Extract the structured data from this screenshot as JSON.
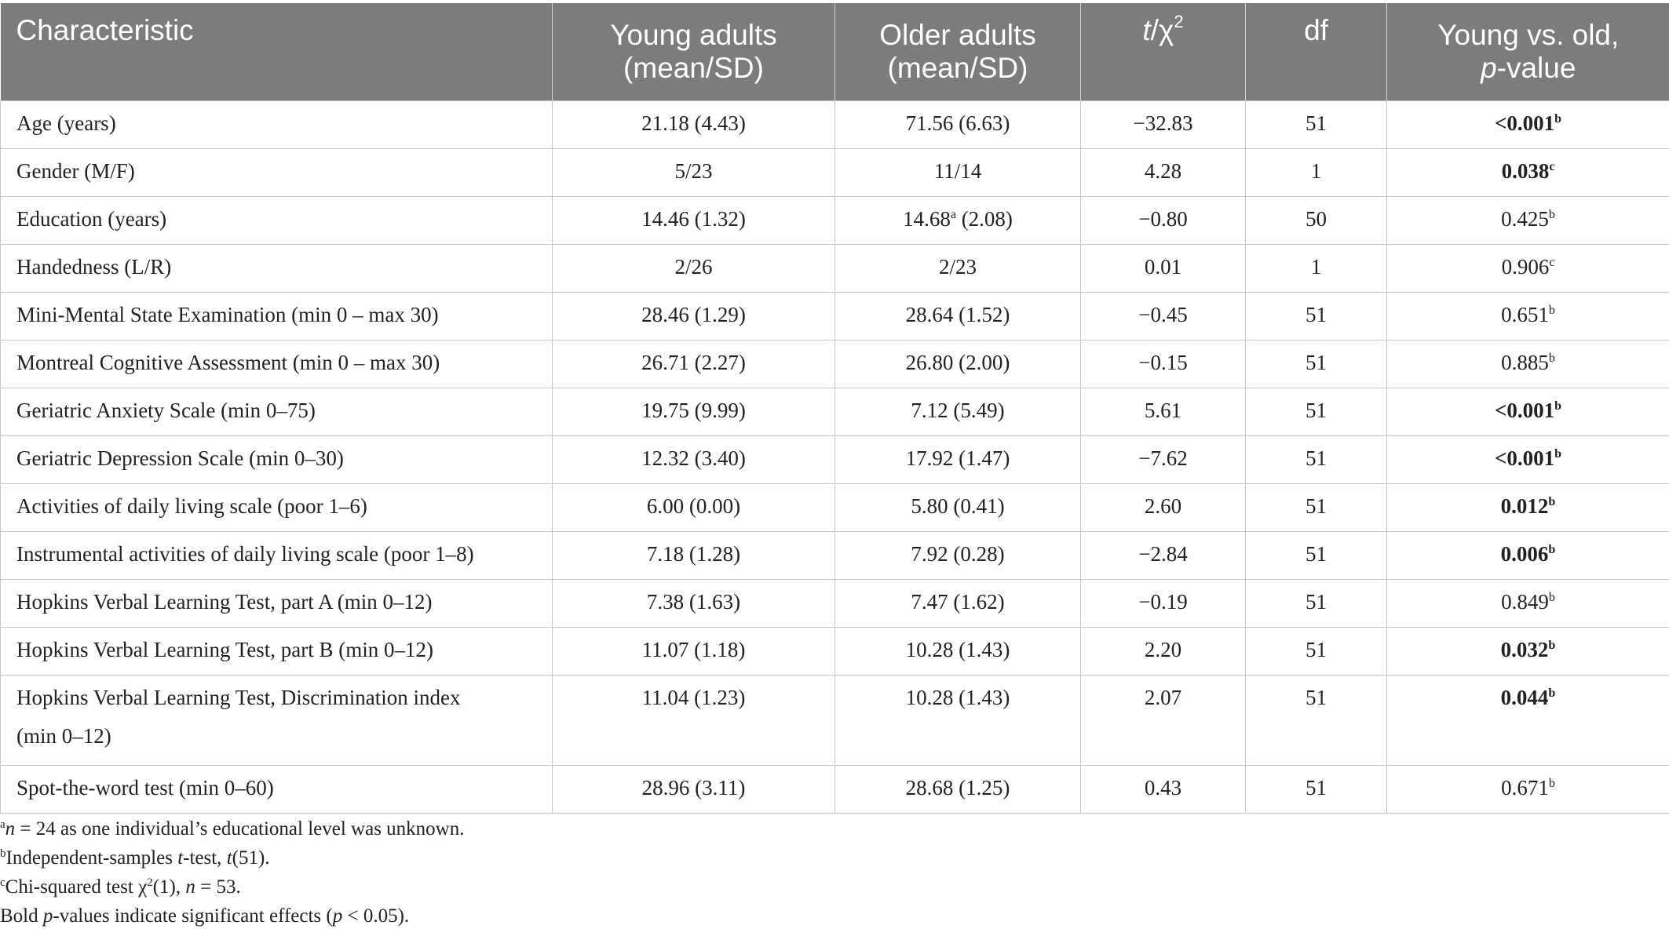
{
  "table": {
    "headers": [
      {
        "line1": "Characteristic",
        "line2": ""
      },
      {
        "line1": "Young adults",
        "line2": "(mean/SD)"
      },
      {
        "line1": "Older adults",
        "line2": "(mean/SD)"
      },
      {
        "line1_pre": "t",
        "line1_post": "/χ",
        "sup": "2"
      },
      {
        "line1": "df",
        "line2": ""
      },
      {
        "line1": "Young vs. old,",
        "line2_it": "p",
        "line2_post": "-value"
      }
    ],
    "rows": [
      {
        "characteristic": "Age (years)",
        "young": "21.18 (4.43)",
        "older": "71.56 (6.63)",
        "older_sup": "",
        "stat": "−32.83",
        "df": "51",
        "p": "<0.001",
        "p_sup": "b",
        "bold": true
      },
      {
        "characteristic": "Gender (M/F)",
        "young": "5/23",
        "older": "11/14",
        "older_sup": "",
        "stat": "4.28",
        "df": "1",
        "p": "0.038",
        "p_sup": "c",
        "bold": true
      },
      {
        "characteristic": "Education (years)",
        "young": "14.46 (1.32)",
        "older": "14.68",
        "older_sup": "a",
        "older_rest": " (2.08)",
        "stat": "−0.80",
        "df": "50",
        "p": "0.425",
        "p_sup": "b",
        "bold": false
      },
      {
        "characteristic": "Handedness (L/R)",
        "young": "2/26",
        "older": "2/23",
        "older_sup": "",
        "stat": "0.01",
        "df": "1",
        "p": "0.906",
        "p_sup": "c",
        "bold": false
      },
      {
        "characteristic": "Mini-Mental State Examination (min 0 – max 30)",
        "young": "28.46 (1.29)",
        "older": "28.64 (1.52)",
        "older_sup": "",
        "stat": "−0.45",
        "df": "51",
        "p": "0.651",
        "p_sup": "b",
        "bold": false
      },
      {
        "characteristic": "Montreal Cognitive Assessment (min 0 – max 30)",
        "young": "26.71 (2.27)",
        "older": "26.80 (2.00)",
        "older_sup": "",
        "stat": "−0.15",
        "df": "51",
        "p": "0.885",
        "p_sup": "b",
        "bold": false
      },
      {
        "characteristic": "Geriatric Anxiety Scale (min 0–75)",
        "young": "19.75 (9.99)",
        "older": "7.12 (5.49)",
        "older_sup": "",
        "stat": "5.61",
        "df": "51",
        "p": "<0.001",
        "p_sup": "b",
        "bold": true
      },
      {
        "characteristic": "Geriatric Depression Scale (min 0–30)",
        "young": "12.32 (3.40)",
        "older": "17.92 (1.47)",
        "older_sup": "",
        "stat": "−7.62",
        "df": "51",
        "p": "<0.001",
        "p_sup": "b",
        "bold": true
      },
      {
        "characteristic": "Activities of daily living scale (poor 1–6)",
        "young": "6.00 (0.00)",
        "older": "5.80 (0.41)",
        "older_sup": "",
        "stat": "2.60",
        "df": "51",
        "p": "0.012",
        "p_sup": "b",
        "bold": true
      },
      {
        "characteristic": "Instrumental activities of daily living scale (poor 1–8)",
        "young": "7.18 (1.28)",
        "older": "7.92 (0.28)",
        "older_sup": "",
        "stat": "−2.84",
        "df": "51",
        "p": "0.006",
        "p_sup": "b",
        "bold": true
      },
      {
        "characteristic": "Hopkins Verbal Learning Test, part A (min 0–12)",
        "young": "7.38 (1.63)",
        "older": "7.47 (1.62)",
        "older_sup": "",
        "stat": "−0.19",
        "df": "51",
        "p": "0.849",
        "p_sup": "b",
        "bold": false
      },
      {
        "characteristic": "Hopkins Verbal Learning Test, part B (min 0–12)",
        "young": "11.07 (1.18)",
        "older": "10.28 (1.43)",
        "older_sup": "",
        "stat": "2.20",
        "df": "51",
        "p": "0.032",
        "p_sup": "b",
        "bold": true
      },
      {
        "characteristic": "Hopkins Verbal Learning Test, Discrimination index",
        "characteristic_line2": "(min 0–12)",
        "young": "11.04 (1.23)",
        "older": "10.28 (1.43)",
        "older_sup": "",
        "stat": "2.07",
        "df": "51",
        "p": "0.044",
        "p_sup": "b",
        "bold": true
      },
      {
        "characteristic": "Spot-the-word test (min 0–60)",
        "young": "28.96 (3.11)",
        "older": "28.68 (1.25)",
        "older_sup": "",
        "stat": "0.43",
        "df": "51",
        "p": "0.671",
        "p_sup": "b",
        "bold": false
      }
    ]
  },
  "footnotes": {
    "a": {
      "sup": "a",
      "it": "n",
      "text": " = 24 as one individual’s educational level was unknown."
    },
    "b": {
      "sup": "b",
      "pre": "Independent-samples ",
      "it1": "t",
      "mid": "-test, ",
      "it2": "t",
      "post": "(51)."
    },
    "c": {
      "sup": "c",
      "pre": "Chi-squared test χ",
      "sup2": "2",
      "mid": "(1), ",
      "it": "n",
      "post": " = 53."
    },
    "d": {
      "pre": "Bold ",
      "it1": "p",
      "mid": "-values indicate significant effects (",
      "it2": "p",
      "post": " < 0.05)."
    }
  }
}
